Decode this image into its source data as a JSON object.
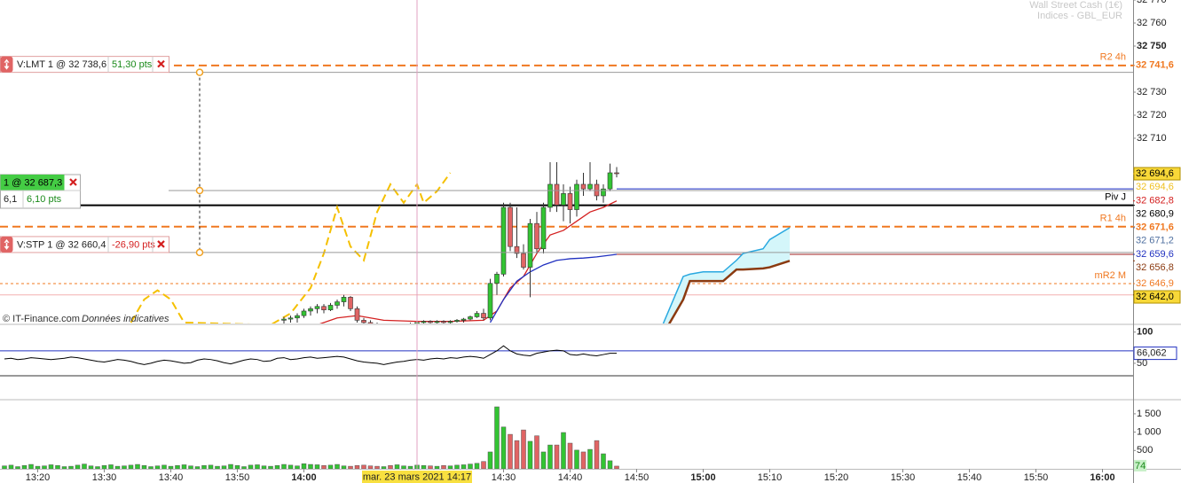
{
  "header": {
    "instrument": "Wall Street Cash (1€)",
    "market": "Indices - GBL_EUR"
  },
  "footer": {
    "source": "© IT-Finance.com",
    "note": "Données indicatives"
  },
  "crosshair": {
    "time": "14:17",
    "label": "mar. 23 mars 2021 14:17"
  },
  "chart_data": [
    {
      "type": "candlestick",
      "xlim": [
        "13:15",
        "16:05"
      ],
      "ylim": [
        32629.6,
        32770
      ],
      "yticks": [
        {
          "value": 32770,
          "label": "32 770"
        },
        {
          "value": 32760,
          "label": "32 760"
        },
        {
          "value": 32750,
          "label": "32 750"
        },
        {
          "value": 32730,
          "label": "32 730"
        },
        {
          "value": 32720,
          "label": "32 720"
        },
        {
          "value": 32710,
          "label": "32 710"
        }
      ],
      "up_color": "#33c433",
      "down_color": "#e06464",
      "x": [
        "13:57",
        "13:58",
        "13:59",
        "14:00",
        "14:01",
        "14:02",
        "14:03",
        "14:04",
        "14:05",
        "14:06",
        "14:07",
        "14:08",
        "14:09",
        "14:10",
        "14:11",
        "14:12",
        "14:13",
        "14:14",
        "14:15",
        "14:16",
        "14:17",
        "14:18",
        "14:19",
        "14:20",
        "14:21",
        "14:22",
        "14:23",
        "14:24",
        "14:25",
        "14:26",
        "14:27",
        "14:28",
        "14:29",
        "14:30",
        "14:31",
        "14:32",
        "14:33",
        "14:34",
        "14:35",
        "14:36",
        "14:37",
        "14:38",
        "14:39",
        "14:40",
        "14:41",
        "14:42",
        "14:43",
        "14:44",
        "14:45",
        "14:46",
        "14:47"
      ],
      "open": [
        32631,
        32631.5,
        32632,
        32633,
        32635,
        32636,
        32637,
        32635.5,
        32637.5,
        32639,
        32641,
        32636,
        32631,
        32630,
        32629,
        32628,
        32628,
        32627,
        32627,
        32628,
        32629,
        32630,
        32630.5,
        32630,
        32630.5,
        32630,
        32630.5,
        32631,
        32631.5,
        32632.5,
        32634,
        32632,
        32647,
        32651,
        32680,
        32663,
        32660,
        32654,
        32673,
        32662,
        32680,
        32690,
        32681,
        32686,
        32679,
        32690,
        32688,
        32690,
        32685,
        32688,
        32695
      ],
      "high": [
        32632.5,
        32633,
        32634,
        32636,
        32637,
        32638,
        32638,
        32638.5,
        32640,
        32642,
        32641.5,
        32637,
        32632,
        32631,
        32630,
        32629,
        32629,
        32628,
        32629,
        32630,
        32631,
        32631,
        32631,
        32631,
        32631,
        32631,
        32631.5,
        32632,
        32633,
        32635,
        32636,
        32649,
        32652,
        32682,
        32682,
        32680,
        32664,
        32675,
        32678,
        32682,
        32699.6,
        32699.6,
        32690,
        32689,
        32692,
        32695,
        32699.6,
        32692,
        32690,
        32699,
        32697.5
      ],
      "low": [
        32629,
        32630,
        32630,
        32632,
        32633,
        32634,
        32634,
        32635,
        32636,
        32637,
        32635,
        32630,
        32629,
        32628,
        32627,
        32627,
        32626,
        32626,
        32626,
        32627,
        32628,
        32629,
        32629,
        32629,
        32629.5,
        32629,
        32630,
        32630,
        32631,
        32632,
        32631,
        32631,
        32642,
        32650,
        32661,
        32658,
        32653,
        32641,
        32660,
        32660,
        32678,
        32678,
        32674,
        32673,
        32676,
        32685,
        32687,
        32683,
        32682,
        32687,
        32693
      ],
      "close": [
        32631.5,
        32632,
        32633,
        32635,
        32636,
        32637,
        32635.5,
        32637.5,
        32639,
        32641,
        32636,
        32631,
        32630,
        32629,
        32628,
        32628,
        32627,
        32627,
        32628,
        32629,
        32630,
        32630.5,
        32630,
        32630.5,
        32630,
        32630.5,
        32631,
        32631.5,
        32632.5,
        32634,
        32632,
        32647,
        32651,
        32680,
        32663,
        32660,
        32654,
        32673,
        32662,
        32680,
        32690,
        32681,
        32686,
        32679,
        32690,
        32688,
        32690,
        32685,
        32688,
        32695,
        32694.6
      ],
      "overlays": [
        {
          "color": "#f5c000",
          "style": "dashed",
          "x": [
            "13:34",
            "13:36",
            "13:38",
            "13:40",
            "13:42",
            "13:47",
            "13:55",
            "13:58",
            "14:01",
            "14:03",
            "14:05",
            "14:07",
            "14:09",
            "14:11",
            "14:13",
            "14:15",
            "14:17",
            "14:18",
            "14:20",
            "14:22"
          ],
          "values": [
            32630,
            32640,
            32644,
            32640,
            32630,
            32629.6,
            32629,
            32634,
            32645,
            32660,
            32680,
            32663,
            32657,
            32678,
            32690,
            32682,
            32690,
            32682,
            32687,
            32695
          ]
        },
        {
          "color": "#d42020",
          "style": "solid",
          "x": [
            "14:02",
            "14:05",
            "14:08",
            "14:12",
            "14:17",
            "14:22",
            "14:27",
            "14:29",
            "14:31",
            "14:33",
            "14:35",
            "14:37",
            "14:39",
            "14:41",
            "14:43",
            "14:45",
            "14:47"
          ],
          "values": [
            32629,
            32632,
            32633,
            32631,
            32630.5,
            32630.5,
            32631,
            32635,
            32645,
            32650,
            32660,
            32668,
            32670,
            32674,
            32678,
            32680,
            32682.8
          ]
        },
        {
          "color": "#2030c0",
          "style": "solid",
          "x": [
            "14:28",
            "14:30",
            "14:32",
            "14:34",
            "14:36",
            "14:38",
            "14:40",
            "14:42",
            "14:44",
            "14:47"
          ],
          "values": [
            32630,
            32640,
            32648,
            32652,
            32655,
            32657,
            32657.7,
            32658,
            32658.5,
            32659.6
          ]
        }
      ],
      "cloud": {
        "x": [
          "14:54",
          "14:57",
          "14:58",
          "15:00",
          "15:03",
          "15:05",
          "15:06",
          "15:09",
          "15:10",
          "15:13"
        ],
        "upper": [
          32629.6,
          32650,
          32651,
          32652,
          32652,
          32657,
          32660,
          32662,
          32666,
          32671.2
        ],
        "lower": [
          32625,
          32640,
          32648,
          32648,
          32648,
          32653,
          32653,
          32653.5,
          32654,
          32656.8
        ],
        "upper_color": "#29a8e0",
        "lower_color": "#8b3a10",
        "fill_color": "#d4f6fa"
      },
      "levels": [
        {
          "name": "R2 4h",
          "value": 32741.6,
          "color": "#f07820",
          "style": "dashed"
        },
        {
          "value": 32688.0,
          "color": "#1428c8",
          "style": "solid",
          "from": "14:47"
        },
        {
          "name": "Piv J",
          "value": 32680.9,
          "color": "#000000",
          "style": "thick"
        },
        {
          "name": "R1 4h",
          "value": 32671.6,
          "color": "#f07820",
          "style": "dashed"
        },
        {
          "value": 32659.6,
          "color": "#a02020",
          "style": "solid",
          "from": "14:47"
        },
        {
          "name": "mR2 M",
          "value": 32646.9,
          "color": "#f07820",
          "style": "dotted"
        },
        {
          "value": 32642.0,
          "color": "#f4b0b0",
          "style": "solid"
        }
      ],
      "axis_labels": [
        {
          "value": 32741.6,
          "label": "32 741,6",
          "color": "#f07820",
          "bold": true
        },
        {
          "value": 32694.6,
          "label": "32 694,6",
          "color": "#000000",
          "bg": "#f8d838"
        },
        {
          "value": 32694.6,
          "label": "32 694,6",
          "color": "#f0c020"
        },
        {
          "value": 32682.8,
          "label": "32 682,8",
          "color": "#d42020"
        },
        {
          "value": 32680.9,
          "label": "32 680,9",
          "color": "#000000"
        },
        {
          "value": 32671.6,
          "label": "32 671,6",
          "color": "#f07820",
          "bold": true
        },
        {
          "value": 32671.2,
          "label": "32 671,2",
          "color": "#5070a0"
        },
        {
          "value": 32659.6,
          "label": "32 659,6",
          "color": "#2030c0"
        },
        {
          "value": 32656.8,
          "label": "32 656,8",
          "color": "#8b3a10"
        },
        {
          "value": 32646.9,
          "label": "32 646,9",
          "color": "#f07820"
        },
        {
          "value": 32642.0,
          "label": "32 642,0",
          "color": "#000000",
          "bg": "#f8d838"
        }
      ],
      "orders": [
        {
          "text": "V:LMT 1 @ 32 738,6",
          "pts": "51,30 pts",
          "price": 32738.6,
          "color": "#e06464",
          "pts_color": "#1a8a1a"
        },
        {
          "text": "1 @ 32 687,3",
          "qty": "6,1",
          "pts": "6,10 pts",
          "price": 32687.3,
          "color": "#44cc44",
          "pts_color": "#1a8a1a"
        },
        {
          "text": "V:STP 1 @ 32 660,4",
          "pts": "-26,90 pts",
          "price": 32660.4,
          "color": "#e06464",
          "pts_color": "#d42020"
        }
      ]
    },
    {
      "type": "line",
      "color": "#000000",
      "ylim": [
        -7,
        111
      ],
      "yticks": [
        100,
        50
      ],
      "hlines": [
        {
          "value": 70,
          "color": "#2030c0"
        },
        {
          "value": 30,
          "color": "#333333"
        }
      ],
      "last_value_label": "66,062",
      "x": [
        "13:15",
        "13:16",
        "13:17",
        "13:18",
        "13:19",
        "13:20",
        "13:21",
        "13:22",
        "13:23",
        "13:24",
        "13:25",
        "13:26",
        "13:27",
        "13:28",
        "13:29",
        "13:30",
        "13:31",
        "13:32",
        "13:33",
        "13:34",
        "13:35",
        "13:36",
        "13:37",
        "13:38",
        "13:39",
        "13:40",
        "13:41",
        "13:42",
        "13:43",
        "13:44",
        "13:45",
        "13:46",
        "13:47",
        "13:48",
        "13:49",
        "13:50",
        "13:51",
        "13:52",
        "13:53",
        "13:54",
        "13:55",
        "13:56",
        "13:57",
        "13:58",
        "13:59",
        "14:00",
        "14:01",
        "14:02",
        "14:03",
        "14:04",
        "14:05",
        "14:06",
        "14:07",
        "14:08",
        "14:09",
        "14:10",
        "14:11",
        "14:12",
        "14:13",
        "14:14",
        "14:15",
        "14:16",
        "14:17",
        "14:18",
        "14:19",
        "14:20",
        "14:21",
        "14:22",
        "14:23",
        "14:24",
        "14:25",
        "14:26",
        "14:27",
        "14:28",
        "14:29",
        "14:30",
        "14:31",
        "14:32",
        "14:33",
        "14:34",
        "14:35",
        "14:36",
        "14:37",
        "14:38",
        "14:39",
        "14:40",
        "14:41",
        "14:42",
        "14:43",
        "14:44",
        "14:45",
        "14:46",
        "14:47"
      ],
      "values": [
        57,
        58,
        56,
        57,
        59,
        58,
        57,
        56,
        57,
        58,
        60,
        59,
        57,
        55,
        53,
        52,
        54,
        56,
        55,
        53,
        50,
        48,
        50,
        53,
        55,
        54,
        52,
        50,
        51,
        55,
        57,
        56,
        54,
        51,
        49,
        52,
        55,
        57,
        56,
        53,
        54,
        58,
        59,
        56,
        57,
        59,
        60,
        58,
        59,
        60,
        61,
        60,
        57,
        54,
        52,
        51,
        50,
        48,
        50,
        52,
        53,
        55,
        56,
        55,
        57,
        58,
        57,
        59,
        58,
        60,
        61,
        60,
        58,
        64,
        70,
        78,
        70,
        65,
        63,
        62,
        66,
        68,
        70,
        71,
        70,
        64,
        63,
        65,
        63,
        62,
        64,
        66,
        66.062
      ]
    },
    {
      "type": "bar",
      "ylim": [
        0,
        1860
      ],
      "yticks": [
        {
          "value": 1500,
          "label": "1 500"
        },
        {
          "value": 1000,
          "label": "1 000"
        },
        500
      ],
      "xticks": [
        "13:20",
        "13:30",
        "13:40",
        "13:50",
        "14:00",
        "14:30",
        "14:40",
        "14:50",
        "15:00",
        "15:10",
        "15:20",
        "15:30",
        "15:40",
        "15:50",
        "16:00"
      ],
      "x": [
        "13:15",
        "13:16",
        "13:17",
        "13:18",
        "13:19",
        "13:20",
        "13:21",
        "13:22",
        "13:23",
        "13:24",
        "13:25",
        "13:26",
        "13:27",
        "13:28",
        "13:29",
        "13:30",
        "13:31",
        "13:32",
        "13:33",
        "13:34",
        "13:35",
        "13:36",
        "13:37",
        "13:38",
        "13:39",
        "13:40",
        "13:41",
        "13:42",
        "13:43",
        "13:44",
        "13:45",
        "13:46",
        "13:47",
        "13:48",
        "13:49",
        "13:50",
        "13:51",
        "13:52",
        "13:53",
        "13:54",
        "13:55",
        "13:56",
        "13:57",
        "13:58",
        "13:59",
        "14:00",
        "14:01",
        "14:02",
        "14:03",
        "14:04",
        "14:05",
        "14:06",
        "14:07",
        "14:08",
        "14:09",
        "14:10",
        "14:11",
        "14:12",
        "14:13",
        "14:14",
        "14:15",
        "14:16",
        "14:17",
        "14:18",
        "14:19",
        "14:20",
        "14:21",
        "14:22",
        "14:23",
        "14:24",
        "14:25",
        "14:26",
        "14:27",
        "14:28",
        "14:29",
        "14:30",
        "14:31",
        "14:32",
        "14:33",
        "14:34",
        "14:35",
        "14:36",
        "14:37",
        "14:38",
        "14:39",
        "14:40",
        "14:41",
        "14:42",
        "14:43",
        "14:44",
        "14:45",
        "14:46",
        "14:47"
      ],
      "values": [
        80,
        100,
        60,
        90,
        120,
        70,
        80,
        110,
        90,
        60,
        70,
        100,
        130,
        80,
        60,
        90,
        110,
        70,
        80,
        100,
        120,
        90,
        60,
        80,
        100,
        70,
        90,
        110,
        80,
        60,
        90,
        100,
        70,
        80,
        120,
        90,
        60,
        100,
        110,
        80,
        70,
        90,
        120,
        100,
        80,
        140,
        120,
        110,
        90,
        100,
        120,
        80,
        70,
        90,
        100,
        80,
        70,
        60,
        90,
        110,
        80,
        70,
        100,
        90,
        80,
        70,
        90,
        80,
        100,
        110,
        130,
        150,
        200,
        460,
        1690,
        1140,
        940,
        770,
        1060,
        750,
        900,
        460,
        650,
        650,
        990,
        700,
        510,
        460,
        530,
        770,
        410,
        220,
        74
      ]
    }
  ]
}
